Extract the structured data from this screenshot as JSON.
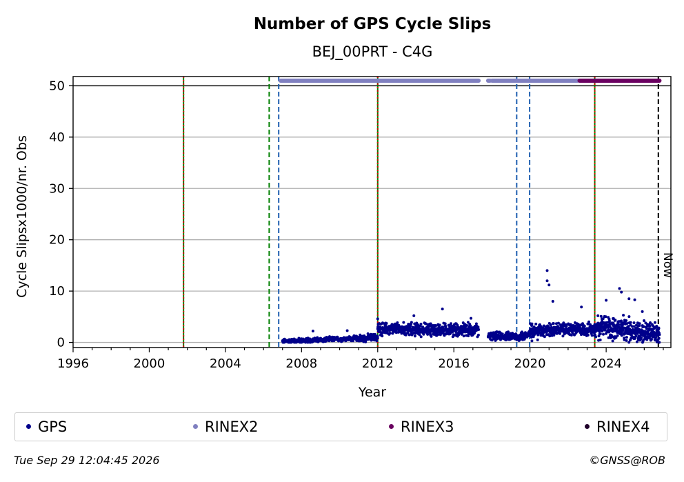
{
  "chart_data": {
    "type": "scatter",
    "title": "Number of GPS Cycle Slips",
    "subtitle": "BEJ_00PRT - C4G",
    "xlabel": "Year",
    "ylabel": "Cycle Slipsx1000/nr. Obs",
    "xlim": [
      1996,
      2027.4
    ],
    "ylim": [
      -1,
      51.8
    ],
    "xticks": [
      1996,
      2000,
      2004,
      2008,
      2012,
      2016,
      2020,
      2024
    ],
    "yticks": [
      0,
      10,
      20,
      30,
      40,
      50
    ],
    "grid": "horizontal",
    "reference_line_y": 50,
    "now_label": "Now",
    "now_x": 2026.74,
    "event_lines": [
      {
        "x": 2001.8,
        "style": "red-green-dashed"
      },
      {
        "x": 2006.3,
        "style": "green-dashed"
      },
      {
        "x": 2006.8,
        "style": "blue-dashed"
      },
      {
        "x": 2012.0,
        "style": "red-green-dashed"
      },
      {
        "x": 2019.3,
        "style": "blue-dashed"
      },
      {
        "x": 2019.98,
        "style": "blue-dashed"
      },
      {
        "x": 2023.4,
        "style": "red-green-dashed"
      }
    ],
    "series": [
      {
        "name": "GPS",
        "color": "#00008b",
        "description_segments": [
          {
            "x": [
              2007.0,
              2011.0
            ],
            "y_base": [
              0.2,
              0.8
            ],
            "spread": 0.6
          },
          {
            "x": [
              2011.0,
              2012.0
            ],
            "y_base": [
              0.8,
              1.0
            ],
            "spread": 0.9
          },
          {
            "x": [
              2012.0,
              2017.3
            ],
            "y_base": [
              2.6,
              2.4
            ],
            "spread": 1.6
          },
          {
            "x": [
              2017.8,
              2019.3
            ],
            "y_base": [
              1.2,
              1.2
            ],
            "spread": 1.0
          },
          {
            "x": [
              2019.3,
              2020.0
            ],
            "y_base": [
              1.0,
              1.6
            ],
            "spread": 1.2
          },
          {
            "x": [
              2020.0,
              2023.4
            ],
            "y_base": [
              2.4,
              2.6
            ],
            "spread": 1.6
          },
          {
            "x": [
              2023.4,
              2026.8
            ],
            "y_base": [
              3.2,
              1.6
            ],
            "spread": 3.0
          }
        ],
        "outliers": [
          [
            2008.6,
            2.2
          ],
          [
            2010.4,
            2.3
          ],
          [
            2012.0,
            4.6
          ],
          [
            2013.9,
            5.2
          ],
          [
            2015.4,
            6.5
          ],
          [
            2016.9,
            4.7
          ],
          [
            2020.9,
            14.0
          ],
          [
            2020.9,
            12.0
          ],
          [
            2021.0,
            11.2
          ],
          [
            2021.2,
            8.0
          ],
          [
            2022.7,
            6.9
          ],
          [
            2024.0,
            8.2
          ],
          [
            2024.7,
            10.5
          ],
          [
            2024.8,
            9.8
          ],
          [
            2025.2,
            8.5
          ],
          [
            2025.5,
            8.3
          ],
          [
            2025.9,
            6.0
          ],
          [
            2020.1,
            0.3
          ],
          [
            2020.4,
            0.5
          ],
          [
            2023.6,
            0.4
          ]
        ]
      },
      {
        "name": "RINEX2",
        "color": "#8080c0",
        "y": 51,
        "ranges": [
          [
            2006.9,
            2017.3
          ],
          [
            2017.8,
            2017.9
          ],
          [
            2018.0,
            2022.5
          ]
        ]
      },
      {
        "name": "RINEX3",
        "color": "#6a0060",
        "y": 51,
        "ranges": [
          [
            2022.6,
            2026.8
          ]
        ]
      },
      {
        "name": "RINEX4",
        "color": "#20002a",
        "y": 51,
        "ranges": []
      }
    ]
  },
  "legend": {
    "gps": "GPS",
    "rinex2": "RINEX2",
    "rinex3": "RINEX3",
    "rinex4": "RINEX4"
  },
  "footer": {
    "timestamp": "Tue Sep 29 12:04:45 2026",
    "credit": "©GNSS@ROB"
  }
}
